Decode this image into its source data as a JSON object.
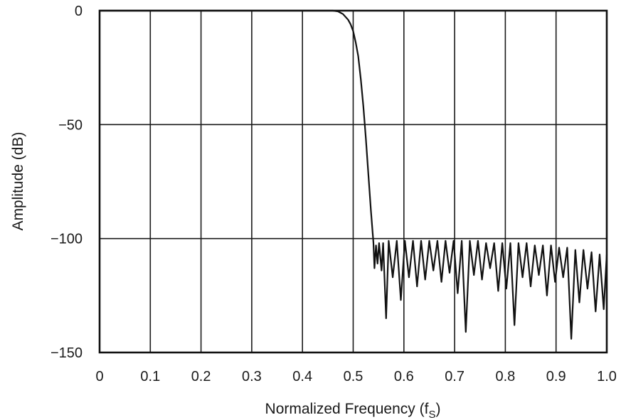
{
  "chart_data": {
    "type": "line",
    "xlabel": "Normalized Frequency (f",
    "xlabel_sub": "S",
    "xlabel_close": ")",
    "ylabel": "Amplitude (dB)",
    "xlim": [
      0,
      1.0
    ],
    "ylim": [
      -150,
      0
    ],
    "x_ticks": [
      0,
      0.1,
      0.2,
      0.3,
      0.4,
      0.5,
      0.6,
      0.7,
      0.8,
      0.9,
      1.0
    ],
    "x_tick_labels": [
      "0",
      "0.1",
      "0.2",
      "0.3",
      "0.4",
      "0.5",
      "0.6",
      "0.7",
      "0.8",
      "0.9",
      "1.0"
    ],
    "y_ticks": [
      0,
      -50,
      -100,
      -150
    ],
    "y_tick_labels": [
      "0",
      "−50",
      "−100",
      "−150"
    ],
    "grid": true,
    "series": [
      {
        "color": "#111111",
        "points": [
          [
            0,
            0
          ],
          [
            0.46,
            0
          ],
          [
            0.47,
            -0.3
          ],
          [
            0.48,
            -1.5
          ],
          [
            0.49,
            -4
          ],
          [
            0.495,
            -6
          ],
          [
            0.5,
            -9
          ],
          [
            0.505,
            -14
          ],
          [
            0.51,
            -20
          ],
          [
            0.515,
            -30
          ],
          [
            0.52,
            -42
          ],
          [
            0.525,
            -56
          ],
          [
            0.53,
            -72
          ],
          [
            0.535,
            -88
          ],
          [
            0.54,
            -102
          ],
          [
            0.542,
            -113
          ],
          [
            0.545,
            -103
          ],
          [
            0.548,
            -111
          ],
          [
            0.551,
            -102
          ],
          [
            0.556,
            -114
          ],
          [
            0.559,
            -102
          ],
          [
            0.565,
            -135
          ],
          [
            0.57,
            -101
          ],
          [
            0.578,
            -117
          ],
          [
            0.586,
            -101
          ],
          [
            0.594,
            -127
          ],
          [
            0.602,
            -101
          ],
          [
            0.61,
            -117
          ],
          [
            0.618,
            -101
          ],
          [
            0.626,
            -121
          ],
          [
            0.634,
            -101
          ],
          [
            0.642,
            -118
          ],
          [
            0.65,
            -101
          ],
          [
            0.658,
            -114
          ],
          [
            0.666,
            -101
          ],
          [
            0.674,
            -119
          ],
          [
            0.682,
            -101
          ],
          [
            0.69,
            -115
          ],
          [
            0.698,
            -101
          ],
          [
            0.706,
            -124
          ],
          [
            0.714,
            -101
          ],
          [
            0.722,
            -141
          ],
          [
            0.73,
            -101
          ],
          [
            0.738,
            -116
          ],
          [
            0.746,
            -101
          ],
          [
            0.754,
            -118
          ],
          [
            0.762,
            -102
          ],
          [
            0.77,
            -113
          ],
          [
            0.778,
            -102
          ],
          [
            0.786,
            -123
          ],
          [
            0.794,
            -102
          ],
          [
            0.802,
            -122
          ],
          [
            0.81,
            -102
          ],
          [
            0.818,
            -138
          ],
          [
            0.826,
            -102
          ],
          [
            0.834,
            -117
          ],
          [
            0.842,
            -102
          ],
          [
            0.85,
            -121
          ],
          [
            0.858,
            -103
          ],
          [
            0.866,
            -116
          ],
          [
            0.874,
            -103
          ],
          [
            0.882,
            -125
          ],
          [
            0.89,
            -103
          ],
          [
            0.898,
            -119
          ],
          [
            0.906,
            -104
          ],
          [
            0.914,
            -117
          ],
          [
            0.922,
            -104
          ],
          [
            0.93,
            -144
          ],
          [
            0.938,
            -105
          ],
          [
            0.946,
            -128
          ],
          [
            0.954,
            -105
          ],
          [
            0.962,
            -122
          ],
          [
            0.97,
            -106
          ],
          [
            0.978,
            -132
          ],
          [
            0.986,
            -107
          ],
          [
            0.994,
            -131
          ],
          [
            1.0,
            -107
          ]
        ]
      }
    ]
  }
}
